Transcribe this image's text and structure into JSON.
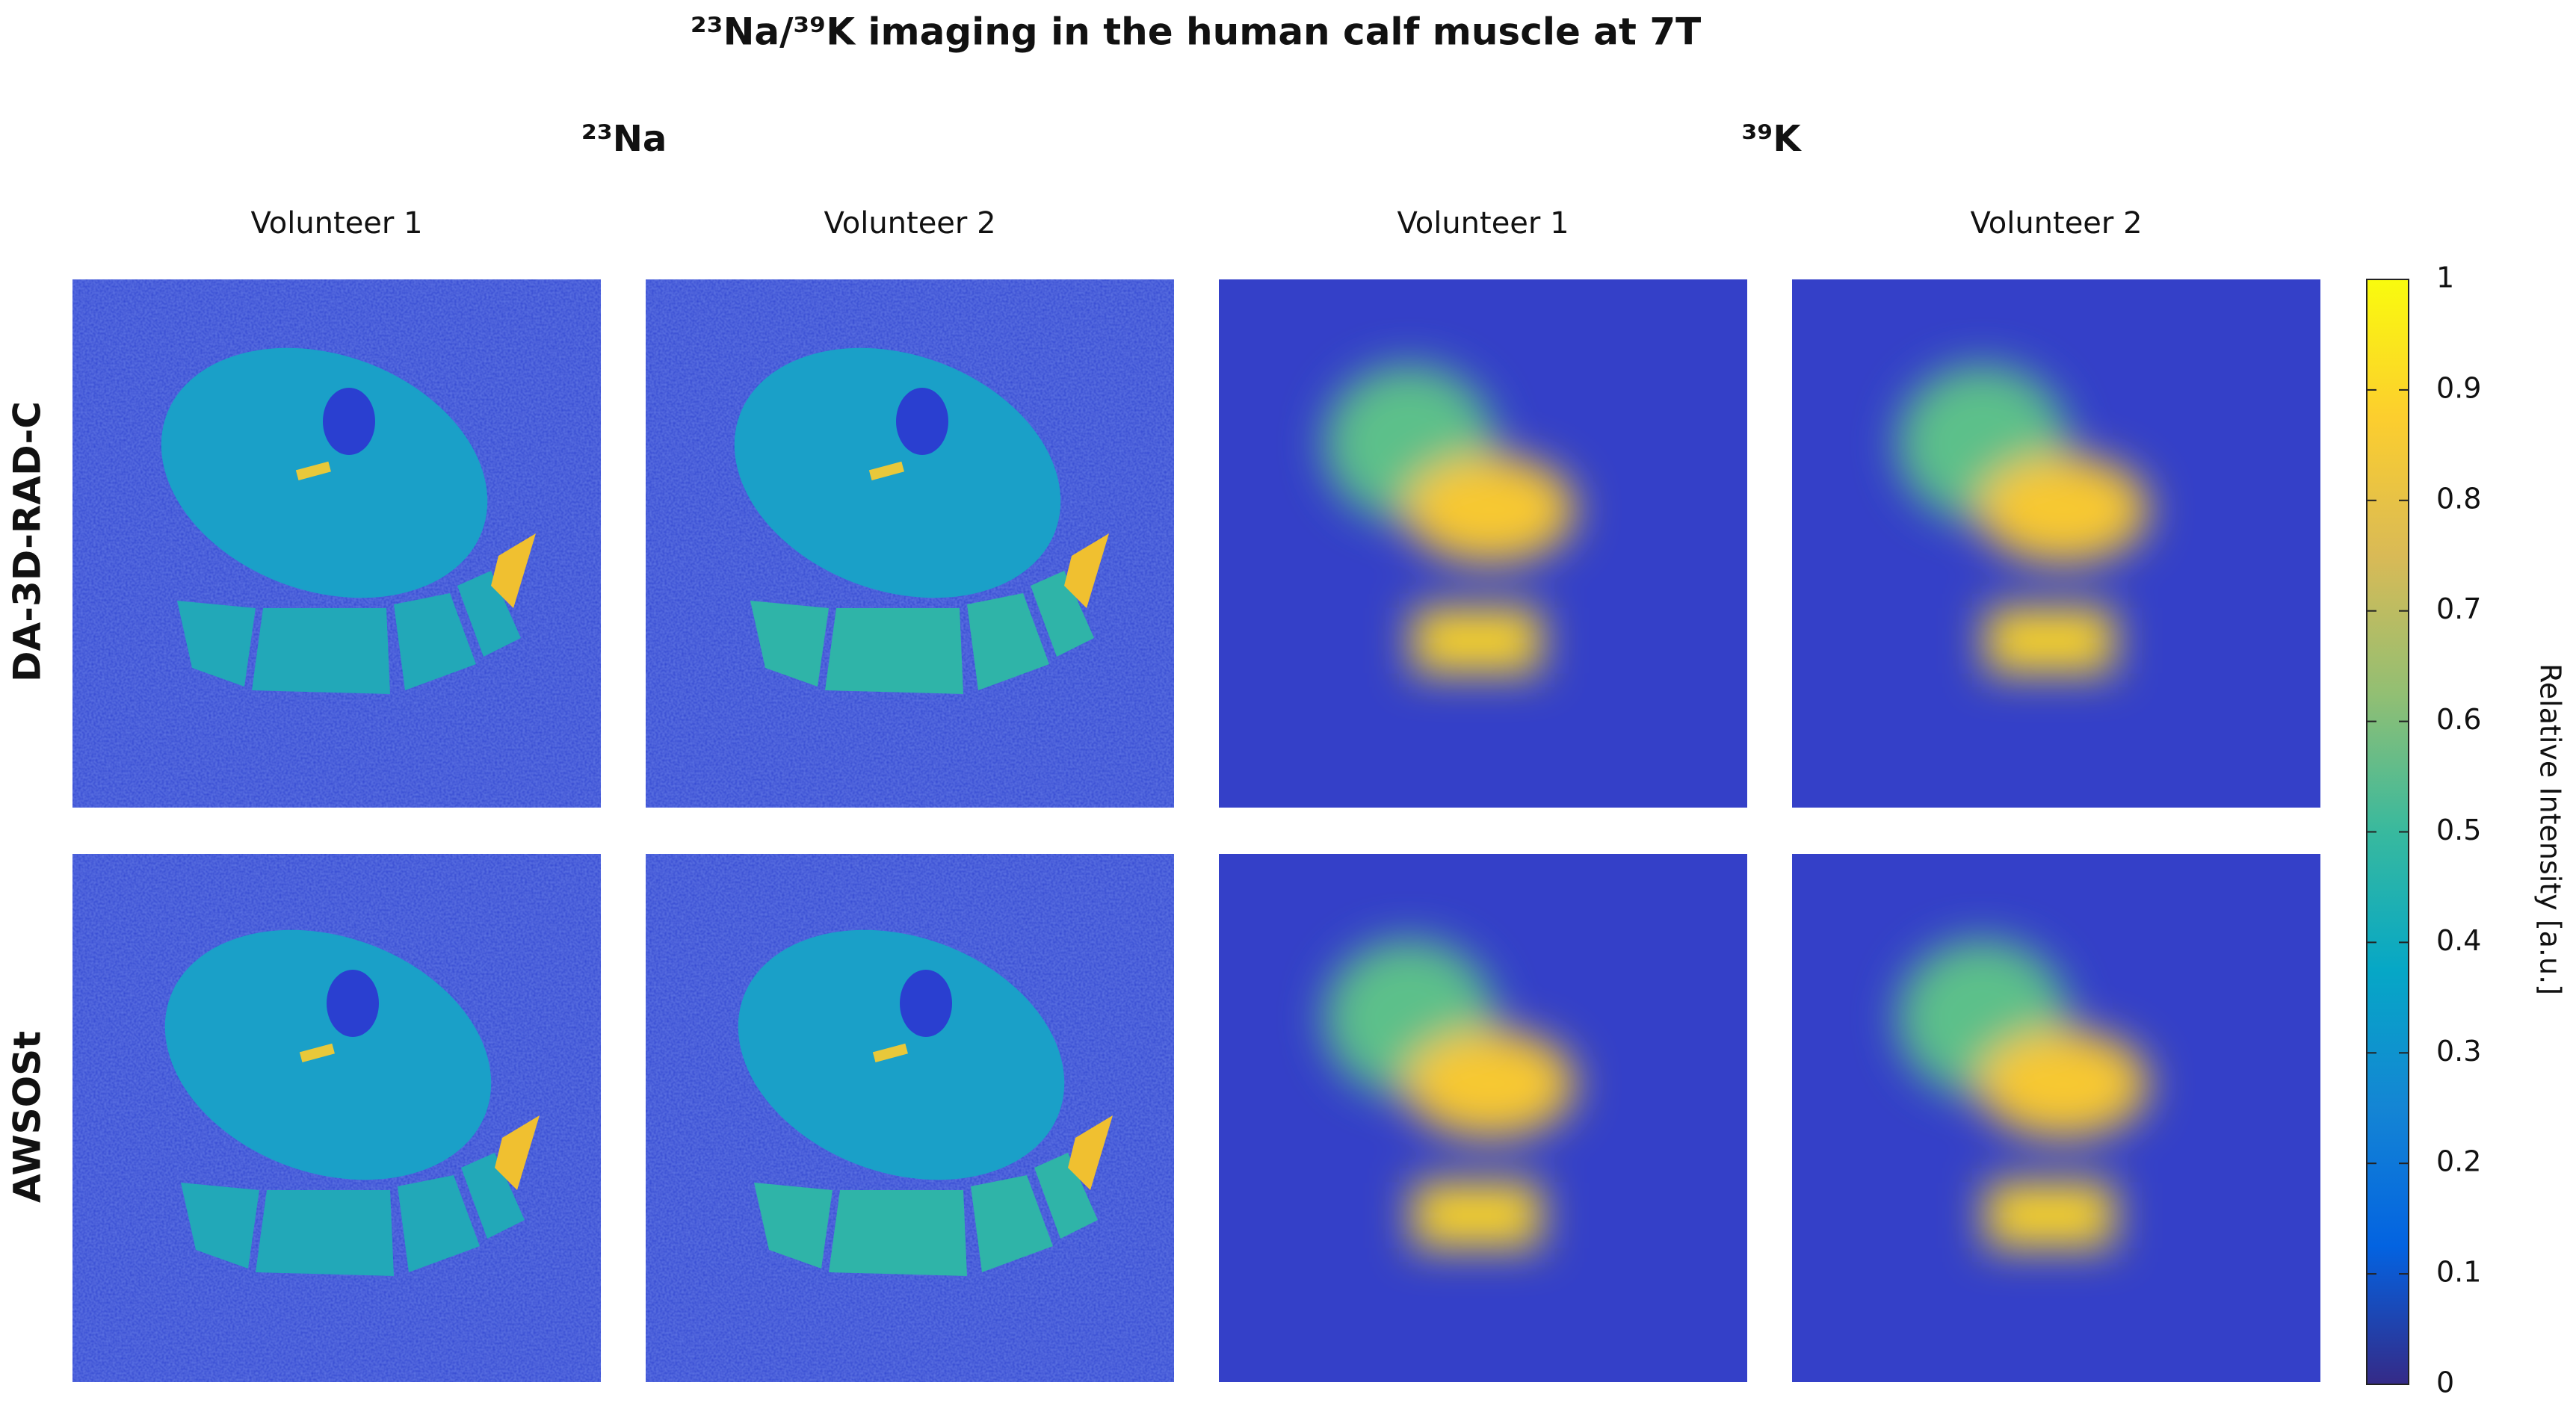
{
  "title": "²³Na/³⁹K imaging in the human calf muscle at 7T",
  "groups": [
    "²³Na",
    "³⁹K"
  ],
  "columns": [
    "Volunteer 1",
    "Volunteer 2",
    "Volunteer 1",
    "Volunteer 2"
  ],
  "rows": [
    "DA-3D-RAD-C",
    "AWSOSt"
  ],
  "colorbar": {
    "label": "Relative Intensity [a.u.]",
    "lim": [
      0,
      1
    ],
    "ticks": [
      0,
      0.1,
      0.2,
      0.3,
      0.4,
      0.5,
      0.6,
      0.7,
      0.8,
      0.9,
      1
    ]
  }
}
